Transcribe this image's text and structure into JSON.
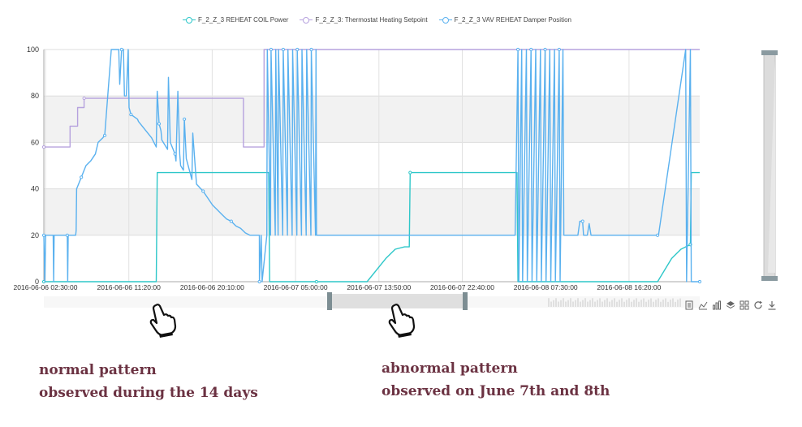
{
  "legend": [
    {
      "label": "F_2_Z_3 REHEAT COIL Power",
      "color": "#2ec7c9"
    },
    {
      "label": "F_2_Z_3: Thermostat Heating Setpoint",
      "color": "#b6a2de"
    },
    {
      "label": "F_2_Z_3 VAV REHEAT Damper Position",
      "color": "#5ab1ef"
    }
  ],
  "annotations": {
    "left_line1": "normal pattern",
    "left_line2": "observed during the 14 days",
    "right_line1": "abnormal pattern",
    "right_line2": "observed on June 7th and 8th"
  },
  "icons": [
    "hand-pointer-icon",
    "data-view-icon",
    "line-chart-icon",
    "bar-chart-icon",
    "stack-icon",
    "tiled-icon",
    "restore-icon",
    "save-image-icon"
  ],
  "chart_data": {
    "type": "line",
    "ylim": [
      0,
      100
    ],
    "yticks": [
      0,
      20,
      40,
      60,
      80,
      100
    ],
    "xticks": [
      "2016-06-06 02:30:00",
      "2016-06-06 11:20:00",
      "2016-06-06 20:10:00",
      "2016-06-07 05:00:00",
      "2016-06-07 13:50:00",
      "2016-06-07 22:40:00",
      "2016-06-08 07:30:00",
      "2016-06-08 16:20:00"
    ],
    "xrange_hours": [
      0,
      70
    ],
    "grid": "horizontal bands",
    "legend_position": "top-center",
    "series": [
      {
        "name": "F_2_Z_3 REHEAT COIL Power",
        "color": "#2ec7c9",
        "x": [
          0,
          12,
          12.1,
          24,
          24.1,
          29,
          29.1,
          34.5,
          36.5,
          37.5,
          38.5,
          39,
          39.1,
          50.5,
          50.6,
          65.5,
          67,
          68,
          69,
          69.1,
          70
        ],
        "y": [
          0,
          0,
          47,
          47,
          0,
          0,
          0,
          0,
          10,
          14,
          15,
          15,
          47,
          47,
          0,
          0,
          10,
          14,
          16,
          47,
          47
        ]
      },
      {
        "name": "F_2_Z_3: Thermostat Heating Setpoint",
        "color": "#b6a2de",
        "x": [
          0,
          2.8,
          2.8,
          3.6,
          3.6,
          4.3,
          4.3,
          21.3,
          21.3,
          23.5,
          23.5,
          70
        ],
        "y": [
          58,
          58,
          67,
          67,
          75,
          75,
          79,
          79,
          58,
          58,
          100,
          100
        ]
      },
      {
        "name": "F_2_Z_3 VAV REHEAT Damper Position",
        "color": "#5ab1ef",
        "x": [
          0,
          0.1,
          0.2,
          1,
          1.05,
          1.1,
          2.5,
          2.55,
          2.6,
          3.4,
          3.45,
          3.5,
          4.0,
          4.5,
          5,
          5.5,
          5.8,
          6.3,
          6.5,
          7.2,
          7.25,
          7.5,
          8,
          8.1,
          8.3,
          8.5,
          8.6,
          8.8,
          9,
          9.1,
          9.3,
          10,
          10.1,
          11.5,
          12,
          12.1,
          12.3,
          12.5,
          12.6,
          13.2,
          13.3,
          13.5,
          14,
          14.1,
          14.3,
          14.5,
          14.6,
          14.9,
          15,
          15.2,
          15.8,
          15.9,
          16.2,
          16.3,
          17,
          17.5,
          18,
          18.5,
          19,
          19.5,
          20,
          20.5,
          21,
          21.5,
          22,
          23,
          23.01,
          23.2,
          23.3,
          23.8,
          23.85,
          24.2,
          24.25,
          24.7,
          24.75,
          25.0,
          25.05,
          25.5,
          25.55,
          26.0,
          26.05,
          26.5,
          26.55,
          27.0,
          27.05,
          27.5,
          27.55,
          28.0,
          28.05,
          28.5,
          28.55,
          29.0,
          29.05,
          29.1,
          50.2,
          50.3,
          50.6,
          50.7,
          51.0,
          51.1,
          51.5,
          51.6,
          52.0,
          52.1,
          52.5,
          52.6,
          53.0,
          53.1,
          53.5,
          53.6,
          54.0,
          54.1,
          54.5,
          54.6,
          55.0,
          55.1,
          55.4,
          55.5,
          57,
          57.2,
          57.5,
          57.6,
          58,
          58.2,
          58.4,
          58.5,
          65.5,
          65.6,
          68.5,
          68.6,
          69.0,
          69.1,
          70
        ],
        "y": [
          20,
          0,
          20,
          20,
          0,
          20,
          20,
          0,
          20,
          20,
          22,
          40,
          45,
          50,
          52,
          55,
          60,
          62,
          63,
          100,
          100,
          100,
          100,
          85,
          100,
          100,
          80,
          80,
          100,
          75,
          72,
          70,
          69,
          62,
          58,
          82,
          68,
          65,
          61,
          57,
          88,
          60,
          55,
          52,
          82,
          55,
          50,
          48,
          70,
          53,
          44,
          64,
          47,
          42,
          39,
          36,
          33,
          31,
          29,
          27,
          26,
          24,
          23,
          21,
          20,
          20,
          0,
          20,
          0,
          20,
          100,
          20,
          100,
          20,
          100,
          20,
          100,
          20,
          100,
          20,
          100,
          20,
          100,
          20,
          100,
          20,
          100,
          20,
          100,
          20,
          100,
          20,
          100,
          20,
          20,
          20,
          100,
          0,
          100,
          0,
          100,
          0,
          100,
          0,
          100,
          0,
          100,
          0,
          100,
          0,
          100,
          0,
          100,
          0,
          100,
          0,
          100,
          20,
          20,
          26,
          26,
          20,
          20,
          25,
          20,
          20,
          20,
          20,
          100,
          0,
          100,
          0,
          0
        ]
      }
    ]
  }
}
